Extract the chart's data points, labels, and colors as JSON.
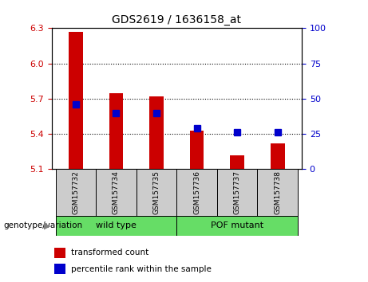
{
  "title": "GDS2619 / 1636158_at",
  "samples": [
    "GSM157732",
    "GSM157734",
    "GSM157735",
    "GSM157736",
    "GSM157737",
    "GSM157738"
  ],
  "bar_bottom": 5.1,
  "red_tops": [
    6.27,
    5.75,
    5.72,
    5.43,
    5.22,
    5.32
  ],
  "blue_percentiles": [
    46,
    40,
    40,
    29,
    26,
    26
  ],
  "ylim_left": [
    5.1,
    6.3
  ],
  "ylim_right": [
    0,
    100
  ],
  "yticks_left": [
    5.1,
    5.4,
    5.7,
    6.0,
    6.3
  ],
  "yticks_right": [
    0,
    25,
    50,
    75,
    100
  ],
  "bar_color": "#cc0000",
  "blue_color": "#0000cc",
  "bar_width": 0.35,
  "blue_marker_size": 6,
  "legend_items": [
    "transformed count",
    "percentile rank within the sample"
  ],
  "genotype_label": "genotype/variation",
  "background_color": "#ffffff",
  "tick_label_color_left": "#cc0000",
  "tick_label_color_right": "#0000cc",
  "sample_bg": "#cccccc",
  "group_bg": "#66dd66"
}
